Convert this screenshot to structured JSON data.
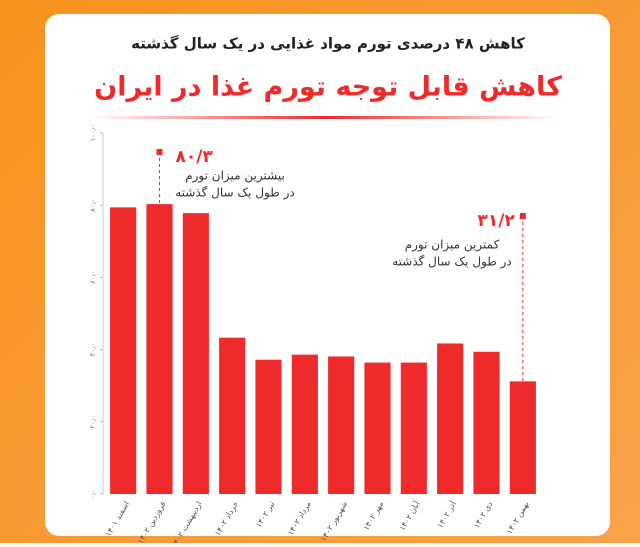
{
  "chart_data": {
    "type": "bar",
    "subtitle": "کاهش ۴۸ درصدی تورم مواد غذایی در یک سال گذشته",
    "title": "کاهش قابل توجه تورم غذا در ایران",
    "categories": [
      "اسفند ۱۴۰۱",
      "فروردین ۱۴۰۲",
      "اردیبهشت ۱۴۰۲",
      "خرداد ۱۴۰۲",
      "تیر ۱۴۰۲",
      "مرداد ۱۴۰۲",
      "شهریور ۱۴۰۲",
      "مهر ۱۴۰۲",
      "آبان ۱۴۰۲",
      "آذر ۱۴۰۲",
      "دی ۱۴۰۲",
      "بهمن ۱۴۰۲"
    ],
    "values": [
      79.4,
      80.3,
      77.8,
      43.3,
      37.2,
      38.6,
      38.1,
      36.4,
      36.4,
      41.7,
      39.4,
      31.2
    ],
    "value_labels": [
      null,
      "۸۰/۳",
      null,
      null,
      null,
      null,
      null,
      null,
      null,
      null,
      null,
      "۳۱/۲"
    ],
    "color": "#ee2a2a",
    "ylim": [
      0,
      100
    ],
    "yticks": [
      {
        "value": 0,
        "label": "۰٫۰"
      },
      {
        "value": 20,
        "label": "۲۰٫۰"
      },
      {
        "value": 40,
        "label": "۴۰٫۰"
      },
      {
        "value": 60,
        "label": "۶۰٫۰"
      },
      {
        "value": 80,
        "label": "۸۰٫۰"
      },
      {
        "value": 100,
        "label": "۱۰۰٫۰"
      }
    ],
    "annotations": [
      {
        "lines": [
          "بیشترین میزان تورم",
          "در طول یک سال گذشته"
        ]
      },
      {
        "lines": [
          "کمترین میزان تورم",
          "در طول یک سال گذشته"
        ]
      }
    ]
  }
}
